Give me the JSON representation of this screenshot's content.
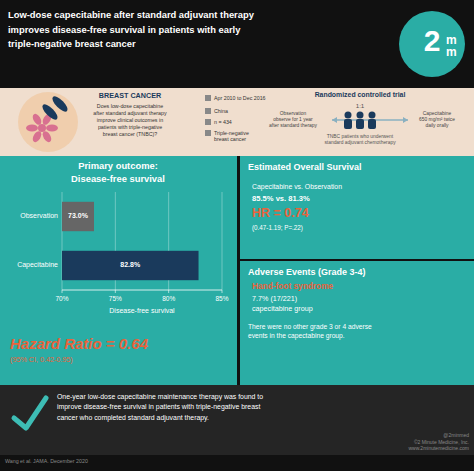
{
  "chart_data": {
    "type": "bar",
    "orientation": "horizontal",
    "title": "Low-dose capecitabine after standard adjuvant therapy\nimproves disease-free survival in patients with early\ntriple-negative breast cancer",
    "xlabel": "Disease-free survival",
    "categories": [
      "Capecitabine",
      "Observation"
    ],
    "values": [
      82.8,
      73.0
    ],
    "value_labels": [
      "82.8%",
      "73.0%"
    ],
    "colors": [
      "#1a3a5c",
      "#666666"
    ],
    "xlim": [
      70,
      85
    ],
    "xticks": [
      {
        "value": 70,
        "label": "70%"
      },
      {
        "value": 75,
        "label": "75%"
      },
      {
        "value": 80,
        "label": "80%"
      },
      {
        "value": 85,
        "label": "85%"
      }
    ],
    "grid": true,
    "data_labels": true,
    "annotations": [
      "Primary outcome:\nDisease-free survival",
      "Hazard Ratio = 0.64",
      "(95% CI, 0.42-0.95)",
      "Estimated Overall Survival",
      "Capecitabine vs. Observation",
      "85.5% vs. 81.3%",
      "HR = 0.74",
      "(0.47-1.19; P=.22)",
      "Adverse Events (Grade 3-4)",
      "Hand-foot syndrome",
      "7.7% (17/221)",
      "capecitabine group",
      "There were no other grade 3 or 4 adverse\nevents in the capectabine group.",
      "BREAST CANCER",
      "Does low-dose capecitabine\nafter standard adjuvant therapy\nimprove clinical outcomes in\npatients with triple-negative\nbreast cancer (TNBC)?",
      "Apr 2010 to Dec 2016",
      "China",
      "n = 434",
      "Triple-negative\nbreast cancer",
      "Randomized controlled trial",
      "1:1",
      "Observation\nobserve for 1 year\nafter standard therapy",
      "TNBC patients who underwent\nstandard adjuvant chemotherapy",
      "Capecitabine\n650 mg/m² twice\ndaily orally",
      "One-year low-dose capecitabine maintenance therapy was found to\nimprove disease-free survival in patients with triple-negative breast\ncancer who completed standard adjuvant therapy.",
      "Wang et al. JAMA. December 2020",
      "@2minmed\n©2 Minute Medicine, Inc.\nwww.2minutemedicine.com",
      "2",
      "m\nm"
    ]
  }
}
